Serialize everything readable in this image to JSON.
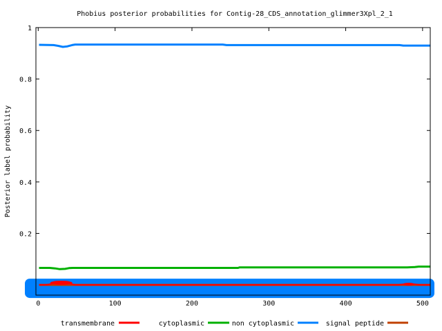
{
  "chart_data": {
    "type": "line",
    "title": "Phobius posterior probabilities for Contig-28_CDS_annotation_glimmer3Xpl_2_1",
    "xlabel": "",
    "ylabel": "Posterior label probability",
    "xlim": [
      -3,
      510
    ],
    "ylim": [
      -0.04,
      1.0
    ],
    "x_ticks": [
      0,
      100,
      200,
      300,
      400,
      500
    ],
    "x_tick_labels": [
      "0",
      "100",
      "200",
      "300",
      "400",
      "500"
    ],
    "y_ticks": [
      0.2,
      0.4,
      0.6,
      0.8,
      1.0
    ],
    "y_tick_labels": [
      "0.2",
      "0.4",
      "0.6",
      "0.8",
      "1"
    ],
    "grid": false,
    "legend_position": "bottom",
    "series": [
      {
        "name": "transmembrane",
        "color": "#ff0000",
        "x": [
          1,
          10,
          18,
          22,
          28,
          32,
          38,
          42,
          48,
          100,
          200,
          300,
          400,
          468,
          475,
          482,
          490,
          496,
          510
        ],
        "y": [
          0.0,
          0.0,
          0.004,
          0.008,
          0.01,
          0.01,
          0.008,
          0.004,
          0.0,
          0.0,
          0.0,
          0.0,
          0.0,
          0.0,
          0.002,
          0.003,
          0.002,
          0.0,
          0.0
        ]
      },
      {
        "name": "cytoplasmic",
        "color": "#00b000",
        "x": [
          1,
          15,
          22,
          28,
          35,
          40,
          45,
          100,
          200,
          260,
          262,
          300,
          400,
          480,
          490,
          495,
          510
        ],
        "y": [
          0.066,
          0.066,
          0.064,
          0.061,
          0.062,
          0.065,
          0.066,
          0.066,
          0.066,
          0.066,
          0.068,
          0.068,
          0.068,
          0.068,
          0.069,
          0.071,
          0.071
        ]
      },
      {
        "name": "non cytoplasmic",
        "color": "#0080ff",
        "x": [
          1,
          20,
          26,
          32,
          38,
          44,
          48,
          100,
          200,
          240,
          245,
          300,
          400,
          470,
          475,
          510
        ],
        "y": [
          0.933,
          0.932,
          0.929,
          0.925,
          0.927,
          0.932,
          0.934,
          0.934,
          0.934,
          0.934,
          0.932,
          0.932,
          0.932,
          0.932,
          0.93,
          0.93
        ]
      },
      {
        "name": "signal peptide",
        "color": "#c04000",
        "x": [
          1,
          510
        ],
        "y": [
          0.0,
          0.0
        ]
      }
    ]
  }
}
